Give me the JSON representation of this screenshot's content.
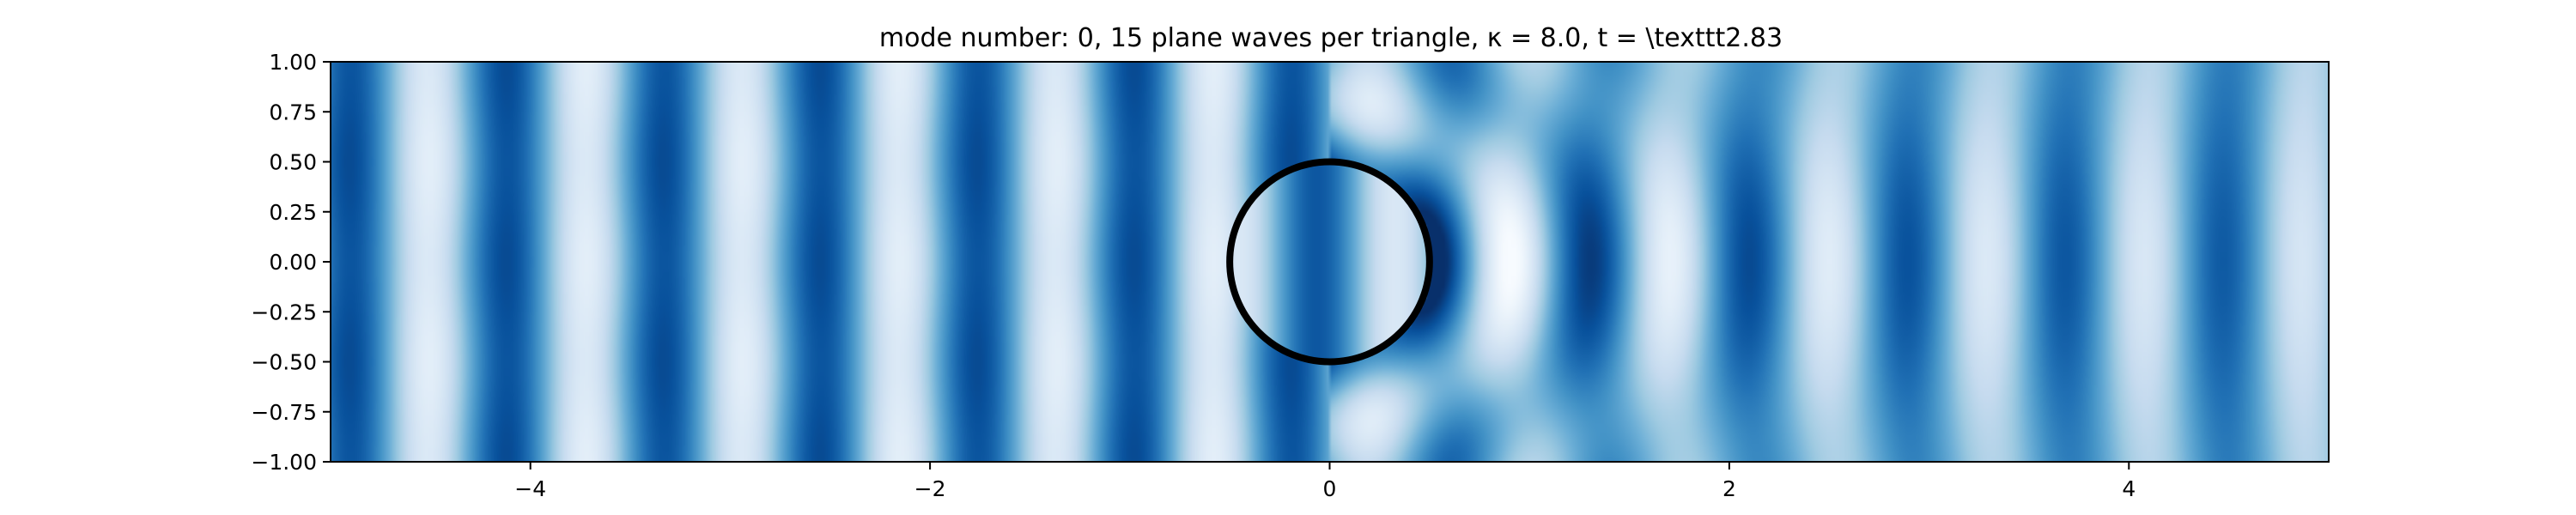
{
  "chart_data": {
    "type": "heatmap",
    "title": "mode number: 0, 15 plane waves per triangle, κ = 8.0, t =  \\texttt2.83",
    "xlabel": "",
    "ylabel": "",
    "xlim": [
      -5.0,
      5.0
    ],
    "ylim": [
      -1.0,
      1.0
    ],
    "x_ticks": [
      -4,
      -2,
      0,
      2,
      4
    ],
    "x_tick_labels": [
      "−4",
      "−2",
      "0",
      "2",
      "4"
    ],
    "y_ticks": [
      1.0,
      0.75,
      0.5,
      0.25,
      0.0,
      -0.25,
      -0.5,
      -0.75,
      -1.0
    ],
    "y_tick_labels": [
      "1.00",
      "0.75",
      "0.50",
      "0.25",
      "0.00",
      "−0.25",
      "−0.50",
      "−0.75",
      "−1.00"
    ],
    "colormap": "Blues",
    "colors": {
      "low": "#f7fbff",
      "mid": "#6baed6",
      "high": "#08306b"
    },
    "grid": false,
    "obstacle": {
      "shape": "circle",
      "center": [
        0.0,
        0.0
      ],
      "radius": 0.5,
      "color": "#000000"
    }
  }
}
